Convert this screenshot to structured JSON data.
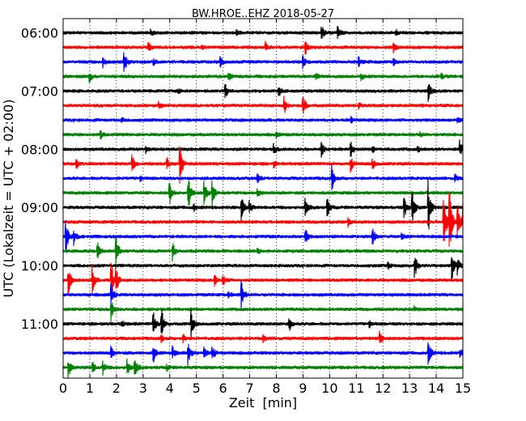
{
  "chart_data": {
    "type": "line",
    "title": "BW.HROE..EHZ 2018-05-27",
    "xlabel": "Zeit  [min]",
    "ylabel": "UTC (Lokalzeit = UTC + 02:00)",
    "xlim": [
      0,
      15
    ],
    "x_ticks": [
      "0",
      "1",
      "2",
      "3",
      "4",
      "5",
      "6",
      "7",
      "8",
      "9",
      "10",
      "11",
      "12",
      "13",
      "14",
      "15"
    ],
    "y_ticks": [
      "06:00",
      "07:00",
      "08:00",
      "09:00",
      "10:00",
      "11:00"
    ],
    "grid": true,
    "row_colors": [
      "#000000",
      "#ff0000",
      "#0000ff",
      "#008000"
    ],
    "traces": [
      {
        "events": [
          [
            9.7,
            10
          ],
          [
            10.3,
            8
          ],
          [
            6.5,
            3
          ],
          [
            3.3,
            3
          ],
          [
            12.5,
            3
          ]
        ]
      },
      {
        "events": [
          [
            3.2,
            6
          ],
          [
            7.6,
            6
          ],
          [
            9.1,
            8
          ],
          [
            12.4,
            6
          ],
          [
            5.2,
            3
          ]
        ]
      },
      {
        "events": [
          [
            1.5,
            6
          ],
          [
            2.3,
            14
          ],
          [
            5.9,
            6
          ],
          [
            9.0,
            7
          ],
          [
            11.1,
            5
          ],
          [
            12.4,
            4
          ],
          [
            3.4,
            3
          ]
        ]
      },
      {
        "events": [
          [
            1.0,
            6
          ],
          [
            6.2,
            6
          ],
          [
            9.5,
            4
          ],
          [
            11.2,
            4
          ],
          [
            14.2,
            3
          ]
        ]
      },
      {
        "events": [
          [
            6.1,
            8
          ],
          [
            13.7,
            14
          ],
          [
            8.1,
            5
          ],
          [
            4.3,
            3
          ]
        ]
      },
      {
        "events": [
          [
            8.3,
            10
          ],
          [
            9.0,
            16
          ],
          [
            3.6,
            4
          ],
          [
            11.1,
            4
          ]
        ]
      },
      {
        "events": [
          [
            10.8,
            4
          ],
          [
            14.8,
            4
          ],
          [
            2.2,
            3
          ]
        ]
      },
      {
        "events": [
          [
            1.4,
            6
          ],
          [
            8.0,
            3
          ],
          [
            13.4,
            3
          ]
        ]
      },
      {
        "events": [
          [
            7.9,
            8
          ],
          [
            9.7,
            9
          ],
          [
            10.8,
            9
          ],
          [
            14.9,
            10
          ],
          [
            3.1,
            4
          ],
          [
            11.6,
            5
          ],
          [
            13.3,
            4
          ]
        ]
      },
      {
        "events": [
          [
            4.4,
            24
          ],
          [
            2.6,
            10
          ],
          [
            3.9,
            8
          ],
          [
            10.8,
            10
          ],
          [
            11.6,
            9
          ],
          [
            0.5,
            6
          ],
          [
            7.9,
            5
          ]
        ]
      },
      {
        "events": [
          [
            7.3,
            6
          ],
          [
            10.1,
            16
          ],
          [
            14.7,
            6
          ],
          [
            2.9,
            3
          ]
        ]
      },
      {
        "events": [
          [
            4.0,
            14
          ],
          [
            4.7,
            22
          ],
          [
            5.3,
            14
          ],
          [
            5.6,
            16
          ],
          [
            7.3,
            5
          ]
        ]
      },
      {
        "events": [
          [
            6.7,
            14
          ],
          [
            7.0,
            7
          ],
          [
            9.1,
            14
          ],
          [
            9.9,
            14
          ],
          [
            12.8,
            14
          ],
          [
            13.1,
            24
          ],
          [
            13.7,
            36
          ],
          [
            4.9,
            5
          ]
        ]
      },
      {
        "events": [
          [
            14.3,
            34
          ],
          [
            14.5,
            46
          ],
          [
            14.8,
            30
          ],
          [
            15.0,
            22
          ],
          [
            10.7,
            5
          ]
        ]
      },
      {
        "events": [
          [
            0.1,
            26
          ],
          [
            0.4,
            10
          ],
          [
            9.1,
            9
          ],
          [
            11.6,
            14
          ],
          [
            12.7,
            5
          ]
        ]
      },
      {
        "events": [
          [
            1.3,
            9
          ],
          [
            2.0,
            20
          ],
          [
            4.1,
            14
          ],
          [
            7.3,
            3
          ]
        ]
      },
      {
        "events": [
          [
            13.2,
            14
          ],
          [
            14.6,
            16
          ],
          [
            14.8,
            10
          ],
          [
            12.2,
            4
          ]
        ]
      },
      {
        "events": [
          [
            0.2,
            18
          ],
          [
            1.1,
            18
          ],
          [
            1.8,
            30
          ],
          [
            2.0,
            14
          ],
          [
            6.0,
            8
          ],
          [
            5.7,
            6
          ]
        ]
      },
      {
        "events": [
          [
            1.8,
            14
          ],
          [
            6.7,
            18
          ],
          [
            6.2,
            5
          ]
        ]
      },
      {
        "events": [
          [
            1.8,
            14
          ],
          [
            13.2,
            3
          ]
        ]
      },
      {
        "events": [
          [
            3.4,
            14
          ],
          [
            3.7,
            18
          ],
          [
            4.8,
            20
          ],
          [
            8.5,
            9
          ],
          [
            2.2,
            4
          ],
          [
            11.5,
            4
          ]
        ]
      },
      {
        "events": [
          [
            3.7,
            5
          ],
          [
            4.5,
            6
          ],
          [
            7.5,
            5
          ],
          [
            11.9,
            8
          ]
        ]
      },
      {
        "events": [
          [
            1.8,
            8
          ],
          [
            3.4,
            10
          ],
          [
            4.1,
            8
          ],
          [
            4.7,
            14
          ],
          [
            5.3,
            8
          ],
          [
            5.6,
            10
          ],
          [
            13.7,
            18
          ],
          [
            14.9,
            4
          ]
        ]
      },
      {
        "events": [
          [
            0.2,
            12
          ],
          [
            1.1,
            8
          ],
          [
            1.5,
            8
          ],
          [
            2.4,
            12
          ],
          [
            2.7,
            14
          ],
          [
            3.9,
            4
          ]
        ]
      }
    ]
  }
}
